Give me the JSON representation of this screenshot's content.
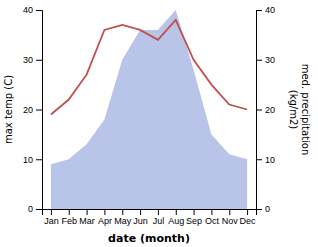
{
  "chart_data": {
    "type": "line",
    "categories": [
      "Jan",
      "Feb",
      "Mar",
      "Apr",
      "May",
      "Jun",
      "Jul",
      "Aug",
      "Sep",
      "Oct",
      "Nov",
      "Dec"
    ],
    "x_label": "date (month)",
    "y_label": "max temp (C)",
    "y2_label": "med. precipitation\n(kg/m2)",
    "series": [
      {
        "type": "line",
        "color": "#c0504d",
        "values": [
          19,
          22,
          27,
          36,
          37,
          36,
          34,
          38,
          30,
          25,
          21,
          20
        ]
      },
      {
        "type": "area",
        "axis": "y2",
        "color": "#b8c4e8",
        "values": [
          9,
          10,
          13,
          18,
          30,
          36,
          36,
          40,
          28,
          15,
          11,
          10
        ]
      }
    ],
    "ylim": [
      0,
      40
    ],
    "yticks": [
      0,
      10,
      20,
      30,
      40
    ],
    "y2lim": [
      0,
      40
    ],
    "y2ticks": [
      0,
      10,
      20,
      30,
      40
    ]
  }
}
